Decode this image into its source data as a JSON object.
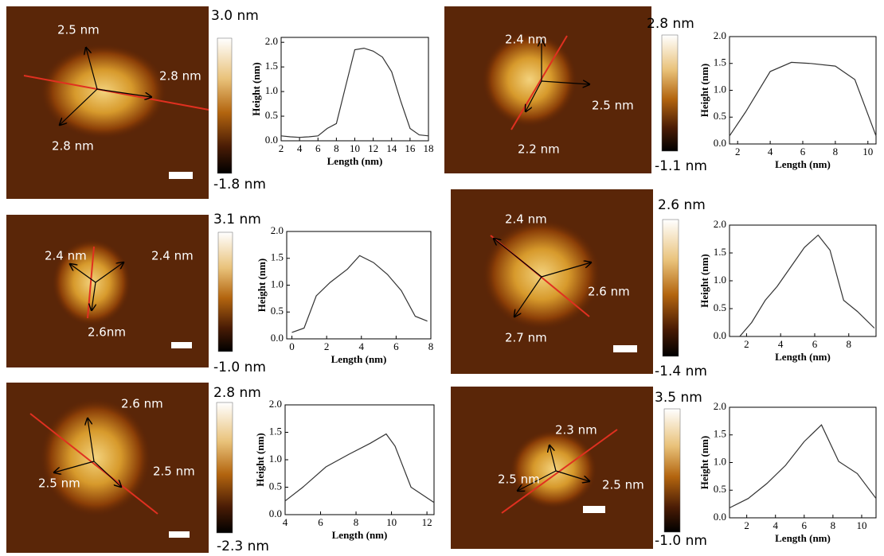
{
  "chart_data": [
    {
      "type": "line",
      "x": [
        2,
        3,
        4,
        5,
        6,
        7,
        8,
        9,
        10,
        11,
        12,
        13,
        14,
        15,
        16,
        17,
        18
      ],
      "values": [
        0.1,
        0.08,
        0.07,
        0.08,
        0.1,
        0.25,
        0.35,
        1.1,
        1.85,
        1.88,
        1.82,
        1.7,
        1.4,
        0.8,
        0.25,
        0.12,
        0.1
      ],
      "color": "#333333",
      "xlim": [
        2,
        18
      ],
      "ylim": [
        0,
        2.1
      ],
      "xticks": [
        2,
        4,
        6,
        8,
        10,
        12,
        14,
        16,
        18
      ],
      "yticks": [
        {
          "value": 0,
          "label": "0.0"
        },
        0.5,
        {
          "value": 1,
          "label": "1.0"
        },
        1.5,
        {
          "value": 2,
          "label": "2.0"
        }
      ],
      "xlabel": "Length (nm)",
      "ylabel": "Height (nm)"
    },
    {
      "type": "line",
      "x": [
        1.5,
        2.5,
        4,
        5.3,
        6.5,
        8,
        9.2,
        10.5
      ],
      "values": [
        0.15,
        0.6,
        1.35,
        1.52,
        1.5,
        1.45,
        1.2,
        0.15
      ],
      "color": "#333333",
      "xlim": [
        1.5,
        10.5
      ],
      "ylim": [
        0,
        2.0
      ],
      "xticks": [
        2,
        4,
        6,
        8,
        10
      ],
      "yticks": [
        {
          "value": 0,
          "label": "0.0"
        },
        0.5,
        {
          "value": 1,
          "label": "1.0"
        },
        1.5,
        {
          "value": 2,
          "label": "2.0"
        }
      ],
      "xlabel": "Length (nm)",
      "ylabel": "Height (nm)"
    },
    {
      "type": "line",
      "x": [
        0,
        0.7,
        1.4,
        2.2,
        3.2,
        3.9,
        4.7,
        5.5,
        6.3,
        7.1,
        7.8
      ],
      "values": [
        0.12,
        0.2,
        0.8,
        1.05,
        1.3,
        1.55,
        1.42,
        1.2,
        0.9,
        0.42,
        0.33
      ],
      "color": "#333333",
      "xlim": [
        -0.3,
        8
      ],
      "ylim": [
        0,
        2.0
      ],
      "xticks": [
        0,
        2,
        4,
        6,
        8
      ],
      "yticks": [
        {
          "value": 0,
          "label": "0.0"
        },
        0.5,
        {
          "value": 1,
          "label": "1.0"
        },
        1.5,
        {
          "value": 2,
          "label": "2.0"
        }
      ],
      "xlabel": "Length (nm)",
      "ylabel": "Height (nm)"
    },
    {
      "type": "line",
      "x": [
        1.6,
        2.3,
        3.1,
        3.8,
        4.6,
        5.4,
        6.2,
        6.9,
        7.7,
        8.5,
        9.5
      ],
      "values": [
        0,
        0.25,
        0.65,
        0.9,
        1.25,
        1.6,
        1.82,
        1.55,
        0.65,
        0.45,
        0.15
      ],
      "color": "#333333",
      "xlim": [
        1,
        9.6
      ],
      "ylim": [
        0,
        2.0
      ],
      "xticks": [
        2,
        4,
        6,
        8
      ],
      "yticks": [
        {
          "value": 0,
          "label": "0.0"
        },
        0.5,
        {
          "value": 1,
          "label": "1.0"
        },
        1.5,
        {
          "value": 2,
          "label": "2.0"
        }
      ],
      "xlabel": "Length (nm)",
      "ylabel": "Height (nm)"
    },
    {
      "type": "line",
      "x": [
        4,
        5,
        6.3,
        7.6,
        8.8,
        9.7,
        10.2,
        11.1,
        12.4
      ],
      "values": [
        0.25,
        0.5,
        0.87,
        1.1,
        1.3,
        1.47,
        1.25,
        0.5,
        0.22
      ],
      "color": "#333333",
      "xlim": [
        4,
        12.4
      ],
      "ylim": [
        0,
        2.0
      ],
      "xticks": [
        4,
        6,
        8,
        10,
        12
      ],
      "yticks": [
        {
          "value": 0,
          "label": "0.0"
        },
        0.5,
        {
          "value": 1,
          "label": "1.0"
        },
        1.5,
        {
          "value": 2,
          "label": "2.0"
        }
      ],
      "xlabel": "Length (nm)",
      "ylabel": "Height (nm)"
    },
    {
      "type": "line",
      "x": [
        0.8,
        2.1,
        3.4,
        4.7,
        6,
        7.2,
        8.4,
        9.7,
        11
      ],
      "values": [
        0.18,
        0.35,
        0.62,
        0.95,
        1.38,
        1.68,
        1.02,
        0.8,
        0.35
      ],
      "color": "#333333",
      "xlim": [
        0.8,
        11
      ],
      "ylim": [
        0,
        2.0
      ],
      "xticks": [
        2,
        4,
        6,
        8,
        10
      ],
      "yticks": [
        {
          "value": 0,
          "label": "0.0"
        },
        0.5,
        {
          "value": 1,
          "label": "1.0"
        },
        1.5,
        {
          "value": 2,
          "label": "2.0"
        }
      ],
      "xlabel": "Length (nm)",
      "ylabel": "Height (nm)"
    }
  ],
  "images": [
    {
      "labels": [
        "2.5 nm",
        "2.8 nm",
        "2.8 nm"
      ],
      "colorbar": {
        "max": "3.0 nm",
        "min": "-1.8 nm"
      }
    },
    {
      "labels": [
        "2.4 nm",
        "2.5 nm",
        "2.2 nm"
      ],
      "colorbar": {
        "max": "2.8 nm",
        "min": "-1.1 nm"
      }
    },
    {
      "labels": [
        "2.4 nm",
        "2.4 nm",
        "2.6nm"
      ],
      "colorbar": {
        "max": "3.1 nm",
        "min": "-1.0 nm"
      }
    },
    {
      "labels": [
        "2.4 nm",
        "2.6 nm",
        "2.7 nm"
      ],
      "colorbar": {
        "max": "2.6 nm",
        "min": "-1.4 nm"
      }
    },
    {
      "labels": [
        "2.6 nm",
        "2.5 nm",
        "2.5 nm"
      ],
      "colorbar": {
        "max": "2.8 nm",
        "min": "-2.3 nm"
      }
    },
    {
      "labels": [
        "2.3 nm",
        "2.5 nm",
        "2.5 nm"
      ],
      "colorbar": {
        "max": "3.5 nm",
        "min": "-1.0 nm"
      }
    }
  ]
}
